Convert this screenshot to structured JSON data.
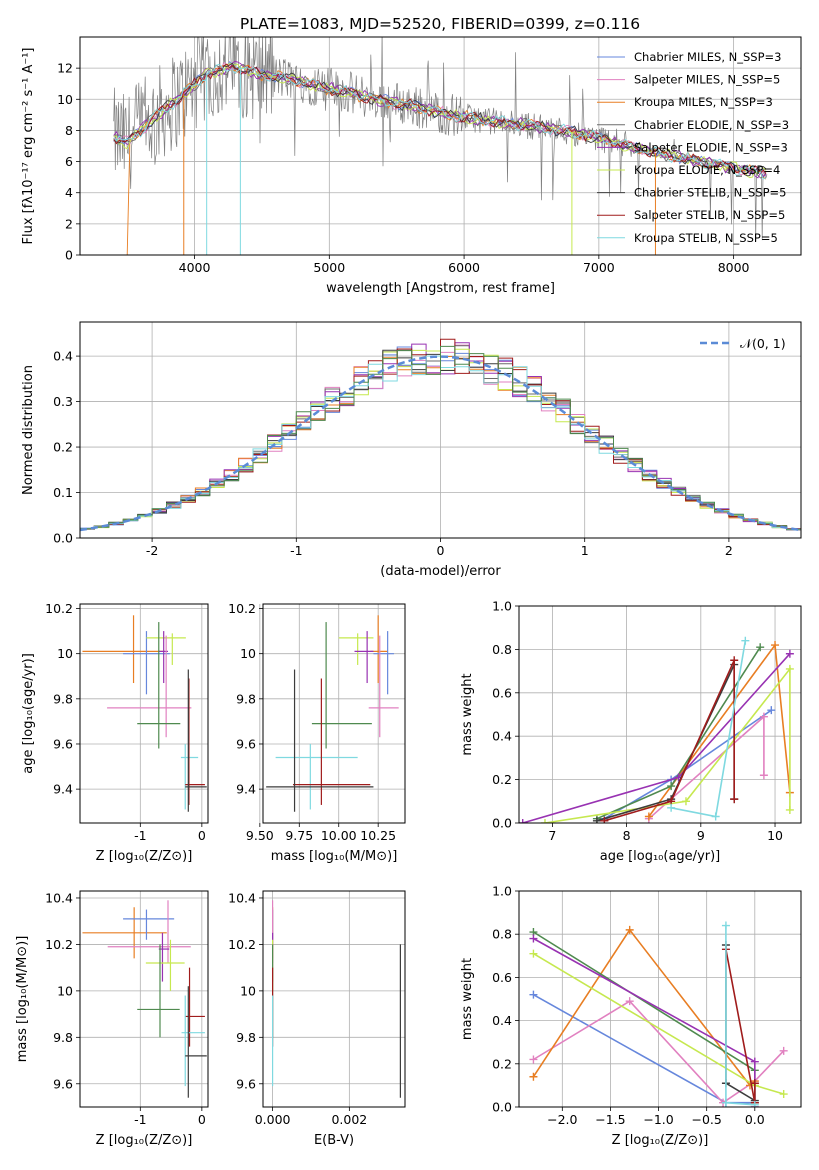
{
  "title": "PLATE=1083, MJD=52520, FIBERID=0399, z=0.116",
  "colors": {
    "chabrier_miles": "#6687dc",
    "salpeter_miles": "#e181c0",
    "kroupa_miles": "#e87e23",
    "chabrier_elodie": "#6b6b6b",
    "salpeter_elodie": "#9832b2",
    "kroupa_elodie": "#c6e84f",
    "chabrier_stelib": "#3c3c3c",
    "salpeter_stelib": "#a01c1c",
    "kroupa_stelib": "#7fd9e0",
    "fit_green": "#4f8a4f",
    "gaussian": "#5b8bd6"
  },
  "chart_data": [
    {
      "id": "spectrum",
      "type": "line",
      "xlabel": "wavelength [Angstrom, rest frame]",
      "ylabel": "Flux [fλ10⁻¹⁷ erg cm⁻² s⁻¹ A⁻¹]",
      "xlim": [
        3150,
        8500
      ],
      "ylim": [
        0,
        14
      ],
      "xticks": [
        4000,
        5000,
        6000,
        7000,
        8000
      ],
      "yticks": [
        0,
        2,
        4,
        6,
        8,
        10,
        12
      ],
      "legend_position": "top-right",
      "legend": [
        {
          "label": "Chabrier MILES, N_SSP=3",
          "color": "#6687dc"
        },
        {
          "label": "Salpeter MILES, N_SSP=5",
          "color": "#e181c0"
        },
        {
          "label": "Kroupa MILES, N_SSP=3",
          "color": "#e87e23"
        },
        {
          "label": "Chabrier ELODIE, N_SSP=3",
          "color": "#6b6b6b"
        },
        {
          "label": "Salpeter ELODIE, N_SSP=3",
          "color": "#9832b2"
        },
        {
          "label": "Kroupa ELODIE, N_SSP=4",
          "color": "#c6e84f"
        },
        {
          "label": "Chabrier STELIB, N_SSP=5",
          "color": "#3c3c3c"
        },
        {
          "label": "Salpeter STELIB, N_SSP=5",
          "color": "#a01c1c"
        },
        {
          "label": "Kroupa STELIB, N_SSP=5",
          "color": "#7fd9e0"
        }
      ],
      "continuum_x": [
        3400,
        3500,
        3700,
        3900,
        4100,
        4300,
        4500,
        4700,
        5000,
        5300,
        5600,
        5900,
        6200,
        6500,
        6800,
        7100,
        7400,
        7700,
        8000,
        8250
      ],
      "continuum_y": [
        7.6,
        7.2,
        8.8,
        10.2,
        11.7,
        12.1,
        11.6,
        11.3,
        10.7,
        10.1,
        9.6,
        9.0,
        8.6,
        8.3,
        7.9,
        7.3,
        6.6,
        6.1,
        5.6,
        5.2
      ]
    },
    {
      "id": "residuals",
      "type": "line",
      "xlabel": "(data-model)/error",
      "ylabel": "Normed distribution",
      "xlim": [
        -2.5,
        2.5
      ],
      "ylim": [
        0,
        0.475
      ],
      "xticks": [
        -2,
        -1,
        0,
        1,
        2
      ],
      "yticks": [
        0.0,
        0.1,
        0.2,
        0.3,
        0.4
      ],
      "legend_position": "top-right",
      "gaussian_label": "𝒩(0, 1)",
      "bin_width": 0.1
    },
    {
      "id": "age_vs_Z",
      "type": "scatter",
      "xlabel": "Z [log₁₀(Z/Z⊙)]",
      "ylabel": "age  [log₁₀(age/yr)]",
      "xlim": [
        -1.98,
        0.1
      ],
      "ylim": [
        9.25,
        10.22
      ],
      "xticks": [
        -1,
        0
      ],
      "yticks": [
        9.4,
        9.6,
        9.8,
        10.0,
        10.2
      ],
      "points": [
        {
          "c": "#e87e23",
          "x": -1.11,
          "y": 10.01,
          "xe": [
            -1.94,
            -0.6
          ],
          "ye": [
            9.87,
            10.17
          ]
        },
        {
          "c": "#6687dc",
          "x": -0.9,
          "y": 10.0,
          "xe": [
            -1.28,
            -0.52
          ],
          "ye": [
            9.82,
            10.1
          ]
        },
        {
          "c": "#c6e84f",
          "x": -0.48,
          "y": 10.07,
          "xe": [
            -0.9,
            -0.26
          ],
          "ye": [
            9.95,
            10.09
          ]
        },
        {
          "c": "#9832b2",
          "x": -0.62,
          "y": 10.01,
          "xe": [
            -0.7,
            -0.55
          ],
          "ye": [
            9.87,
            10.1
          ]
        },
        {
          "c": "#e181c0",
          "x": -0.58,
          "y": 9.76,
          "xe": [
            -1.54,
            -0.17
          ],
          "ye": [
            9.63,
            10.08
          ]
        },
        {
          "c": "#4f8a4f",
          "x": -0.7,
          "y": 9.69,
          "xe": [
            -1.05,
            -0.35
          ],
          "ye": [
            9.58,
            10.14
          ]
        },
        {
          "c": "#7fd9e0",
          "x": -0.27,
          "y": 9.54,
          "xe": [
            -0.34,
            -0.06
          ],
          "ye": [
            9.31,
            9.6
          ]
        },
        {
          "c": "#a01c1c",
          "x": -0.21,
          "y": 9.42,
          "xe": [
            -0.27,
            0.05
          ],
          "ye": [
            9.33,
            9.89
          ]
        },
        {
          "c": "#3c3c3c",
          "x": -0.22,
          "y": 9.41,
          "xe": [
            -0.27,
            0.08
          ],
          "ye": [
            9.3,
            9.93
          ]
        }
      ]
    },
    {
      "id": "age_vs_mass",
      "type": "scatter",
      "xlabel": "mass [log₁₀(M/M⊙)]",
      "xlim": [
        9.52,
        10.42
      ],
      "ylim": [
        9.25,
        10.22
      ],
      "xticks": [
        9.5,
        9.75,
        10.0,
        10.25
      ],
      "xtick_labels": [
        "9.50",
        "9.75",
        "10.00",
        "10.25"
      ],
      "yticks": [
        9.4,
        9.6,
        9.8,
        10.0,
        10.2
      ],
      "points": [
        {
          "c": "#e87e23",
          "x": 10.25,
          "y": 10.01,
          "xe": [
            10.2,
            10.31
          ],
          "ye": [
            9.87,
            10.17
          ]
        },
        {
          "c": "#6687dc",
          "x": 10.31,
          "y": 10.0,
          "xe": [
            10.22,
            10.35
          ],
          "ye": [
            9.82,
            10.1
          ]
        },
        {
          "c": "#c6e84f",
          "x": 10.12,
          "y": 10.07,
          "xe": [
            10.0,
            10.22
          ],
          "ye": [
            9.95,
            10.09
          ]
        },
        {
          "c": "#9832b2",
          "x": 10.18,
          "y": 10.01,
          "xe": [
            10.1,
            10.22
          ],
          "ye": [
            9.87,
            10.1
          ]
        },
        {
          "c": "#e181c0",
          "x": 10.26,
          "y": 9.76,
          "xe": [
            10.19,
            10.38
          ],
          "ye": [
            9.63,
            10.08
          ]
        },
        {
          "c": "#4f8a4f",
          "x": 9.92,
          "y": 9.69,
          "xe": [
            9.83,
            10.21
          ],
          "ye": [
            9.58,
            10.14
          ]
        },
        {
          "c": "#7fd9e0",
          "x": 9.82,
          "y": 9.54,
          "xe": [
            9.6,
            10.12
          ],
          "ye": [
            9.31,
            9.6
          ]
        },
        {
          "c": "#a01c1c",
          "x": 9.89,
          "y": 9.42,
          "xe": [
            9.71,
            10.2
          ],
          "ye": [
            9.33,
            9.89
          ]
        },
        {
          "c": "#3c3c3c",
          "x": 9.72,
          "y": 9.41,
          "xe": [
            9.54,
            10.22
          ],
          "ye": [
            9.3,
            9.93
          ]
        }
      ]
    },
    {
      "id": "weight_vs_age",
      "type": "line",
      "xlabel": "age  [log₁₀(age/yr)]",
      "ylabel": "mass weight",
      "xlim": [
        6.55,
        10.35
      ],
      "ylim": [
        0,
        1
      ],
      "xticks": [
        7,
        8,
        9,
        10
      ],
      "yticks": [
        0.0,
        0.2,
        0.4,
        0.6,
        0.8,
        1.0
      ],
      "series": [
        {
          "c": "#6687dc",
          "x": [
            7.7,
            8.6,
            9.95
          ],
          "y": [
            0.02,
            0.2,
            0.52
          ]
        },
        {
          "c": "#e181c0",
          "x": [
            8.3,
            9.85,
            9.85
          ],
          "y": [
            0.02,
            0.49,
            0.22
          ]
        },
        {
          "c": "#e87e23",
          "x": [
            8.3,
            10.0,
            10.2
          ],
          "y": [
            0.03,
            0.82,
            0.14
          ]
        },
        {
          "c": "#4f8a4f",
          "x": [
            7.6,
            8.6,
            9.8
          ],
          "y": [
            0.02,
            0.17,
            0.81
          ]
        },
        {
          "c": "#9832b2",
          "x": [
            6.6,
            8.7,
            10.2
          ],
          "y": [
            0.0,
            0.21,
            0.78
          ]
        },
        {
          "c": "#c6e84f",
          "x": [
            6.9,
            8.8,
            10.2,
            10.2
          ],
          "y": [
            0.0,
            0.1,
            0.71,
            0.06
          ]
        },
        {
          "c": "#3c3c3c",
          "x": [
            7.6,
            8.6,
            9.45,
            9.45
          ],
          "y": [
            0.01,
            0.11,
            0.73,
            0.11
          ]
        },
        {
          "c": "#a01c1c",
          "x": [
            7.7,
            8.6,
            9.45,
            9.45
          ],
          "y": [
            0.01,
            0.1,
            0.75,
            0.11
          ]
        },
        {
          "c": "#7fd9e0",
          "x": [
            8.6,
            9.2,
            9.6
          ],
          "y": [
            0.07,
            0.03,
            0.84
          ]
        }
      ]
    },
    {
      "id": "mass_vs_Z",
      "type": "scatter",
      "xlabel": "Z [log₁₀(Z/Z⊙)]",
      "ylabel": "mass [log₁₀(M/M⊙)]",
      "xlim": [
        -1.98,
        0.1
      ],
      "ylim": [
        9.5,
        10.43
      ],
      "xticks": [
        -1,
        0
      ],
      "yticks": [
        9.6,
        9.8,
        10.0,
        10.2,
        10.4
      ],
      "points": [
        {
          "c": "#e87e23",
          "x": -1.1,
          "y": 10.25,
          "xe": [
            -1.94,
            -0.57
          ],
          "ye": [
            10.14,
            10.36
          ]
        },
        {
          "c": "#6687dc",
          "x": -0.9,
          "y": 10.31,
          "xe": [
            -1.28,
            -0.45
          ],
          "ye": [
            10.22,
            10.35
          ]
        },
        {
          "c": "#e181c0",
          "x": -0.55,
          "y": 10.19,
          "xe": [
            -1.53,
            -0.18
          ],
          "ye": [
            10.12,
            10.39
          ]
        },
        {
          "c": "#9832b2",
          "x": -0.64,
          "y": 10.18,
          "xe": [
            -0.7,
            -0.53
          ],
          "ye": [
            10.04,
            10.25
          ]
        },
        {
          "c": "#c6e84f",
          "x": -0.51,
          "y": 10.12,
          "xe": [
            -0.91,
            -0.28
          ],
          "ye": [
            10.0,
            10.22
          ]
        },
        {
          "c": "#4f8a4f",
          "x": -0.68,
          "y": 9.92,
          "xe": [
            -1.05,
            -0.36
          ],
          "ye": [
            9.8,
            10.2
          ]
        },
        {
          "c": "#a01c1c",
          "x": -0.2,
          "y": 9.89,
          "xe": [
            -0.27,
            0.05
          ],
          "ye": [
            9.76,
            10.1
          ]
        },
        {
          "c": "#7fd9e0",
          "x": -0.27,
          "y": 9.82,
          "xe": [
            -0.33,
            0.05
          ],
          "ye": [
            9.59,
            9.98
          ]
        },
        {
          "c": "#3c3c3c",
          "x": -0.22,
          "y": 9.72,
          "xe": [
            -0.27,
            0.08
          ],
          "ye": [
            9.54,
            10.02
          ]
        }
      ]
    },
    {
      "id": "mass_vs_ebv",
      "type": "scatter",
      "xlabel": "E(B-V)",
      "xlim": [
        -0.00025,
        0.00345
      ],
      "ylim": [
        9.5,
        10.43
      ],
      "xticks": [
        0.0,
        0.002
      ],
      "xtick_labels": [
        "0.000",
        "0.002"
      ],
      "yticks": [
        9.6,
        9.8,
        10.0,
        10.2,
        10.4
      ],
      "points": [
        {
          "c": "#e87e23",
          "x": 0.0,
          "y": 10.25,
          "ye": [
            10.14,
            10.36
          ]
        },
        {
          "c": "#6687dc",
          "x": 0.0,
          "y": 10.31,
          "ye": [
            10.22,
            10.35
          ]
        },
        {
          "c": "#e181c0",
          "x": 0.0,
          "y": 10.19,
          "ye": [
            10.12,
            10.39
          ]
        },
        {
          "c": "#9832b2",
          "x": 0.0,
          "y": 10.18,
          "ye": [
            10.04,
            10.25
          ]
        },
        {
          "c": "#c6e84f",
          "x": 0.0,
          "y": 10.12,
          "ye": [
            10.0,
            10.22
          ]
        },
        {
          "c": "#4f8a4f",
          "x": 0.0,
          "y": 9.92,
          "ye": [
            9.8,
            10.2
          ]
        },
        {
          "c": "#a01c1c",
          "x": 0.0,
          "y": 9.89,
          "ye": [
            9.76,
            10.1
          ]
        },
        {
          "c": "#7fd9e0",
          "x": 0.0,
          "y": 9.82,
          "ye": [
            9.59,
            9.98
          ]
        },
        {
          "c": "#3c3c3c",
          "x": 0.00333,
          "y": 9.72,
          "ye": [
            9.54,
            10.2
          ]
        }
      ]
    },
    {
      "id": "weight_vs_Z",
      "type": "line",
      "xlabel": "Z [log₁₀(Z/Z⊙)]",
      "ylabel": "mass weight",
      "xlim": [
        -2.45,
        0.48
      ],
      "ylim": [
        0,
        1
      ],
      "xticks": [
        -2.0,
        -1.5,
        -1.0,
        -0.5,
        0.0
      ],
      "xtick_labels": [
        "−2.0",
        "−1.5",
        "−1.0",
        "−0.5",
        "0.0"
      ],
      "yticks": [
        0.0,
        0.2,
        0.4,
        0.6,
        0.8,
        1.0
      ],
      "series": [
        {
          "c": "#6687dc",
          "x": [
            -2.3,
            -0.3,
            0.0
          ],
          "y": [
            0.52,
            0.02,
            0.02
          ]
        },
        {
          "c": "#e181c0",
          "x": [
            -2.3,
            -1.3,
            -0.33,
            0.0,
            0.3
          ],
          "y": [
            0.22,
            0.49,
            0.02,
            0.12,
            0.26
          ]
        },
        {
          "c": "#e87e23",
          "x": [
            -2.3,
            -1.3,
            -0.05,
            0.0
          ],
          "y": [
            0.14,
            0.82,
            0.1,
            0.12
          ]
        },
        {
          "c": "#4f8a4f",
          "x": [
            -2.3,
            0.0,
            0.0
          ],
          "y": [
            0.81,
            0.17,
            0.02
          ]
        },
        {
          "c": "#9832b2",
          "x": [
            -2.3,
            0.0,
            0.0
          ],
          "y": [
            0.78,
            0.21,
            0.0
          ]
        },
        {
          "c": "#c6e84f",
          "x": [
            -2.3,
            0.0,
            0.3
          ],
          "y": [
            0.71,
            0.1,
            0.06
          ]
        },
        {
          "c": "#3c3c3c",
          "x": [
            -0.3,
            -0.3,
            0.0,
            0.0
          ],
          "y": [
            0.75,
            0.11,
            0.03,
            0.11
          ]
        },
        {
          "c": "#a01c1c",
          "x": [
            -0.3,
            0.0,
            0.0
          ],
          "y": [
            0.73,
            0.02,
            0.11
          ]
        },
        {
          "c": "#7fd9e0",
          "x": [
            -0.3,
            -0.3,
            0.0
          ],
          "y": [
            0.84,
            0.02,
            0.01
          ]
        }
      ]
    }
  ]
}
